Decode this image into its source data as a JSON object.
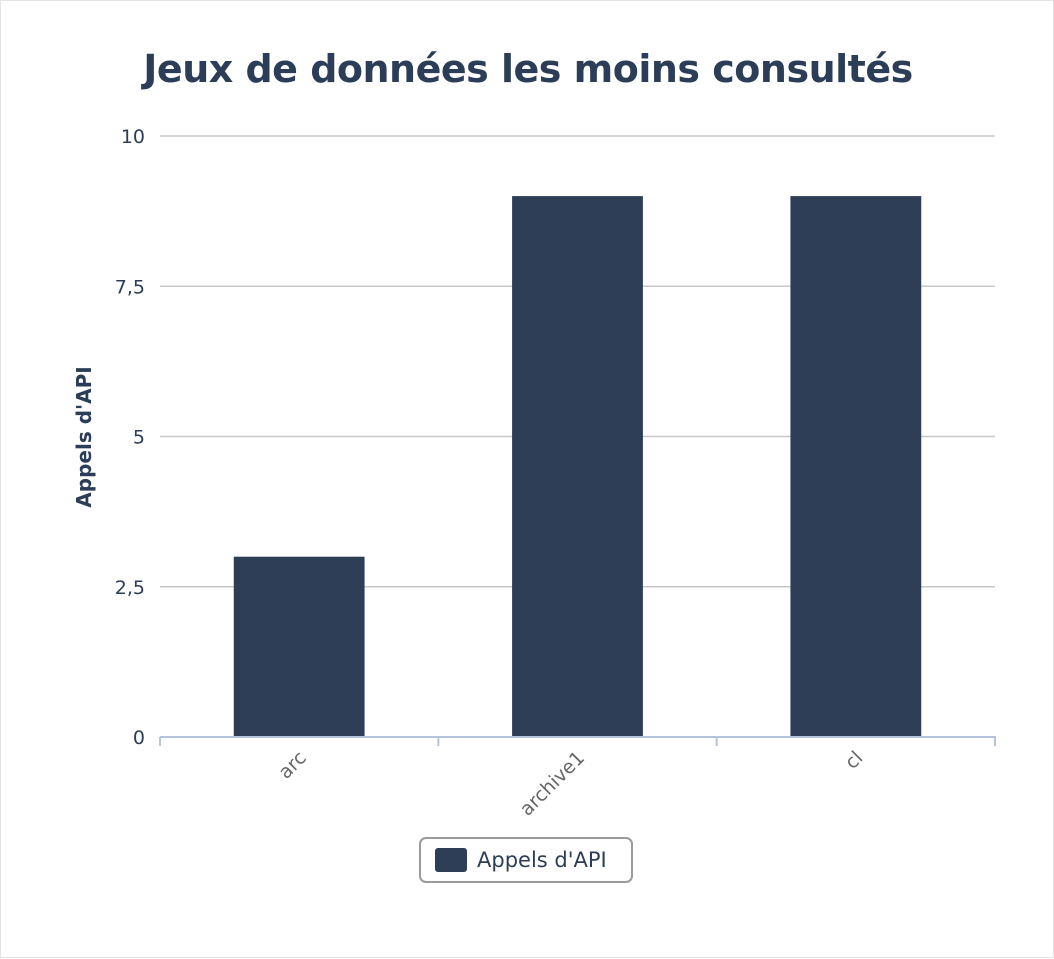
{
  "chart_data": {
    "type": "bar",
    "title": "Jeux de données les moins consultés",
    "xlabel": "",
    "ylabel": "Appels d'API",
    "categories": [
      "arc",
      "archive1",
      "cl"
    ],
    "series": [
      {
        "name": "Appels d'API",
        "values": [
          3,
          9,
          9
        ]
      }
    ],
    "ylim": [
      0,
      10
    ],
    "yticks": [
      0,
      2.5,
      5,
      7.5,
      10
    ],
    "ytick_labels": [
      "0",
      "2,5",
      "5",
      "7,5",
      "10"
    ],
    "grid": true,
    "legend": "bottom-center",
    "colors": {
      "bar": "#2e3e56",
      "grid": "#c8c8c8",
      "axis": "#b4c4dc",
      "text": "#2c3e57",
      "category_text": "#666666"
    }
  }
}
